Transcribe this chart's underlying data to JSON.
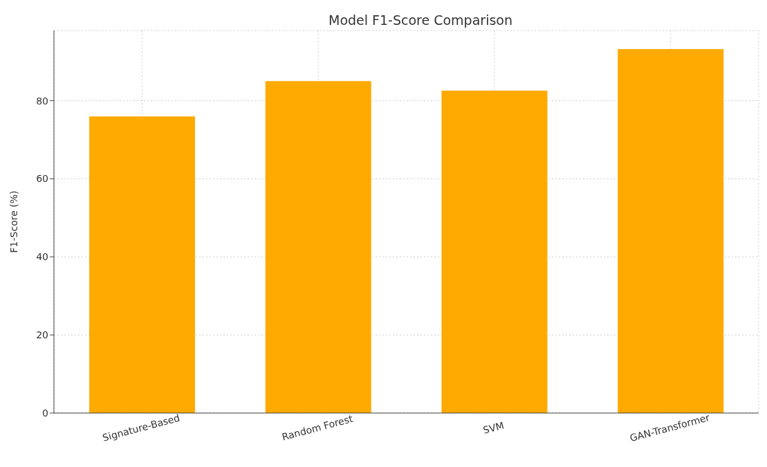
{
  "chart_data": {
    "type": "bar",
    "title": "Model F1-Score Comparison",
    "ylabel": "F1-Score (%)",
    "categories": [
      "Signature-Based",
      "Random Forest",
      "SVM",
      "GAN-Transformer"
    ],
    "values": [
      76,
      85,
      82.6,
      93.2
    ],
    "color": "#ffaa00",
    "ylim": [
      0,
      98
    ],
    "yticks": [
      0,
      20,
      40,
      60,
      80
    ],
    "grid": true
  }
}
